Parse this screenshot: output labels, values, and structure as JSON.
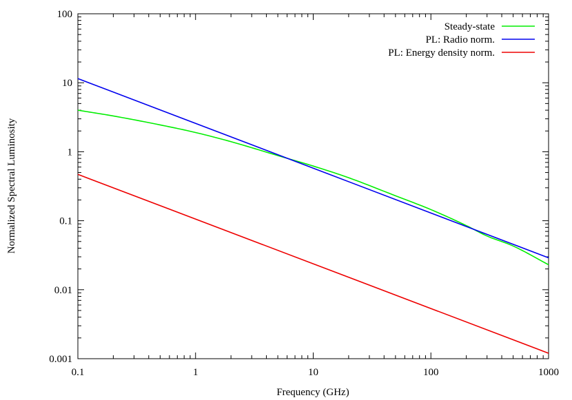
{
  "chart_data": {
    "type": "line",
    "title": "",
    "xlabel": "Frequency (GHz)",
    "ylabel": "Normalized Spectral Luminosity",
    "xscale": "log",
    "yscale": "log",
    "xlim": [
      0.1,
      1000
    ],
    "ylim": [
      0.001,
      100
    ],
    "xticks": [
      {
        "value": 0.1,
        "label": "0.1"
      },
      {
        "value": 1,
        "label": "1"
      },
      {
        "value": 10,
        "label": "10"
      },
      {
        "value": 100,
        "label": "100"
      },
      {
        "value": 1000,
        "label": "1000"
      }
    ],
    "yticks": [
      {
        "value": 0.001,
        "label": "0.001"
      },
      {
        "value": 0.01,
        "label": "0.01"
      },
      {
        "value": 0.1,
        "label": "0.1"
      },
      {
        "value": 1,
        "label": "1"
      },
      {
        "value": 10,
        "label": "10"
      },
      {
        "value": 100,
        "label": "100"
      }
    ],
    "grid": false,
    "legend_position": "top-right",
    "series": [
      {
        "name": "Steady-state",
        "color": "#00ee00",
        "x": [
          0.1,
          0.2,
          0.5,
          1,
          2,
          5,
          10,
          20,
          50,
          100,
          200,
          300,
          500,
          1000
        ],
        "y": [
          4.0,
          3.3,
          2.45,
          1.9,
          1.4,
          0.88,
          0.62,
          0.42,
          0.23,
          0.145,
          0.085,
          0.06,
          0.043,
          0.023
        ]
      },
      {
        "name": "PL: Radio norm.",
        "color": "#0000ee",
        "x": [
          0.1,
          1000
        ],
        "y": [
          11.5,
          0.029
        ]
      },
      {
        "name": "PL: Energy density norm.",
        "color": "#ee0000",
        "x": [
          0.1,
          1000
        ],
        "y": [
          0.47,
          0.0012
        ]
      }
    ]
  }
}
